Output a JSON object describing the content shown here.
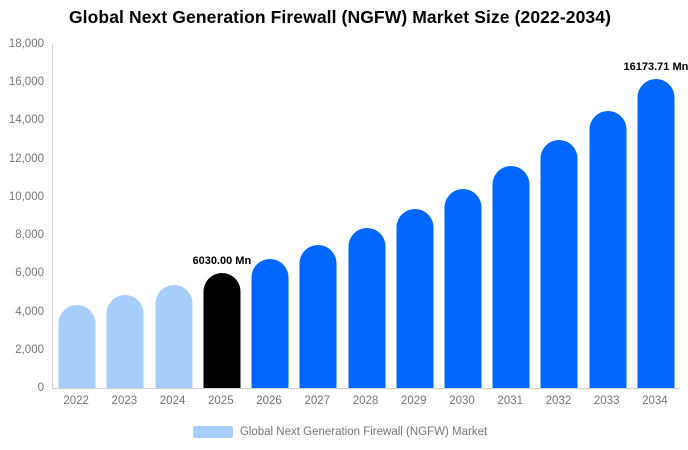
{
  "title": "Global Next Generation Firewall (NGFW) Market Size (2022-2034)",
  "colors": {
    "historical_bar": "#a6cdfb",
    "base_year_bar": "#000000",
    "forecast_bar": "#0066ff",
    "axis_line": "#cfcfcf",
    "axis_text": "#757575",
    "title_text": "#000000"
  },
  "chart_data": {
    "type": "bar",
    "title": "Global Next Generation Firewall (NGFW) Market Size (2022-2034)",
    "xlabel": "",
    "ylabel": "",
    "unit": "Mn",
    "categories": [
      "2022",
      "2023",
      "2024",
      "2025",
      "2026",
      "2027",
      "2028",
      "2029",
      "2030",
      "2031",
      "2032",
      "2033",
      "2034"
    ],
    "values": [
      4340.25,
      4843.17,
      5404.37,
      6030.0,
      6728.62,
      7508.21,
      8378.1,
      9348.76,
      10431.88,
      11640.48,
      12989.1,
      14493.96,
      16173.71
    ],
    "bar_colors": [
      "#a6cdfb",
      "#a6cdfb",
      "#a6cdfb",
      "#000000",
      "#0066ff",
      "#0066ff",
      "#0066ff",
      "#0066ff",
      "#0066ff",
      "#0066ff",
      "#0066ff",
      "#0066ff",
      "#0066ff"
    ],
    "ylim": [
      0,
      18000
    ],
    "ytick_values": [
      0,
      2000,
      4000,
      6000,
      8000,
      10000,
      12000,
      14000,
      16000,
      18000
    ],
    "ytick_labels": [
      "0",
      "2,000",
      "4,000",
      "6,000",
      "8,000",
      "10,000",
      "12,000",
      "14,000",
      "16,000",
      "18,000"
    ],
    "grid": false,
    "annotations": [
      {
        "index": 3,
        "text": "6030.00 Mn"
      },
      {
        "index": 12,
        "text": "16173.71 Mn"
      }
    ],
    "legend": {
      "position": "bottom",
      "label": "Global Next Generation Firewall (NGFW) Market",
      "swatch_color": "#a6cdfb"
    }
  }
}
